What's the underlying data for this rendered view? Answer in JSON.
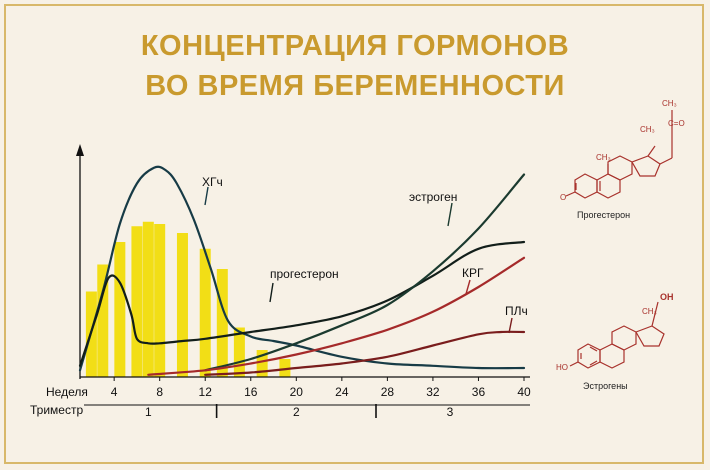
{
  "title": {
    "line1": "КОНЦЕНТРАЦИЯ ГОРМОНОВ",
    "line2": "ВО ВРЕМЯ БЕРЕМЕННОСТИ"
  },
  "colors": {
    "title": "#c99a2e",
    "xgch": "#173b46",
    "progesterone": "#121e1a",
    "estrogen": "#1b3a2f",
    "krg": "#a52a2a",
    "plch": "#7a1d1d",
    "bars": "#f2de16"
  },
  "chart_data": {
    "type": "line",
    "xlabel": "Неделя",
    "xlabel2": "Триместр",
    "xticks": [
      4,
      8,
      12,
      16,
      20,
      24,
      28,
      32,
      36,
      40
    ],
    "xlim": [
      1,
      40
    ],
    "ylim": [
      0,
      100
    ],
    "trimesters": [
      "1",
      "2",
      "3"
    ],
    "trimester_bounds": [
      13,
      27
    ],
    "series": [
      {
        "name": "ХГч",
        "key": "xgch",
        "x": [
          1,
          3,
          4.5,
          6,
          7.5,
          8.5,
          9.5,
          11,
          12.5,
          14,
          16,
          18,
          20,
          24,
          28,
          32,
          36,
          40
        ],
        "y": [
          3,
          38,
          68,
          86,
          93,
          92,
          86,
          70,
          48,
          25,
          18,
          16,
          14,
          9,
          6,
          5,
          4,
          4
        ]
      },
      {
        "name": "прогестерон",
        "key": "progesterone",
        "x": [
          1,
          2.5,
          3.5,
          4.5,
          5.5,
          6,
          7,
          8,
          10,
          12,
          16,
          20,
          24,
          28,
          32,
          36,
          40
        ],
        "y": [
          5,
          28,
          44,
          42,
          28,
          17,
          15,
          15,
          16,
          17,
          20,
          23,
          27,
          34,
          45,
          57,
          60
        ]
      },
      {
        "name": "эстроген",
        "key": "estrogen",
        "x": [
          12,
          16,
          20,
          24,
          28,
          32,
          36,
          40
        ],
        "y": [
          3,
          8,
          15,
          23,
          32,
          47,
          66,
          90
        ]
      },
      {
        "name": "КРГ",
        "key": "krg",
        "x": [
          7,
          12,
          16,
          20,
          24,
          28,
          32,
          36,
          40
        ],
        "y": [
          1,
          3,
          6,
          10,
          15,
          21,
          29,
          40,
          53
        ]
      },
      {
        "name": "ПЛч",
        "key": "plch",
        "x": [
          12,
          16,
          20,
          24,
          28,
          32,
          36,
          38,
          40
        ],
        "y": [
          1,
          2,
          4,
          6,
          9,
          14,
          19,
          20,
          20
        ]
      }
    ],
    "bars": {
      "x": [
        2,
        3,
        4.5,
        6,
        7,
        8,
        10,
        12,
        13.5,
        15,
        17,
        19
      ],
      "y": [
        38,
        50,
        60,
        67,
        69,
        68,
        64,
        57,
        48,
        22,
        12,
        8
      ]
    },
    "series_labels": [
      "ХГч",
      "эстроген",
      "прогестерон",
      "КРГ",
      "ПЛч"
    ]
  },
  "structures": {
    "progesterone": {
      "name": "Прогестерон",
      "labels": [
        "CH₃",
        "C=O",
        "CH₃",
        "CH₃",
        "O"
      ]
    },
    "estrogens": {
      "name": "Эстрогены",
      "labels": [
        "OH",
        "CH₃",
        "HO"
      ]
    }
  }
}
